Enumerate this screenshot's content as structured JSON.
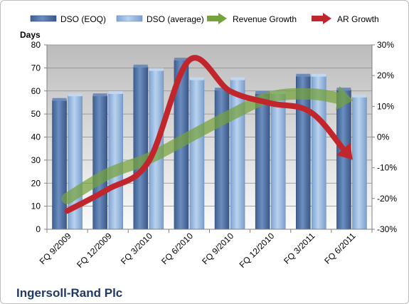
{
  "chart_data": {
    "type": "bar",
    "company": "Ingersoll-Rand Plc",
    "y_left_label": "Days",
    "categories": [
      "FQ 9/2009",
      "FQ 12/2009",
      "FQ 3/2010",
      "FQ 6/2010",
      "FQ 9/2010",
      "FQ 12/2010",
      "FQ 3/2011",
      "FQ 6/2011"
    ],
    "y_left_lim": [
      0,
      80
    ],
    "y_left_ticks": [
      "0",
      "10",
      "20",
      "30",
      "40",
      "50",
      "60",
      "70",
      "80"
    ],
    "y_right_lim": [
      -30,
      30
    ],
    "y_right_ticks": [
      "-30%",
      "-20%",
      "-10%",
      "0%",
      "10%",
      "20%",
      "30%"
    ],
    "grid": true,
    "legend_position": "top",
    "series": [
      {
        "name": "DSO (EOQ)",
        "kind": "bar",
        "axis": "left",
        "color": "#4f6fa0",
        "values": [
          56,
          58,
          70.5,
          73.5,
          60.5,
          59,
          66.5,
          60.5
        ]
      },
      {
        "name": "DSO (average)",
        "kind": "bar",
        "axis": "left",
        "color": "#8fb2dc",
        "values": [
          58,
          59,
          69,
          65,
          65,
          59,
          66.5,
          57.5
        ]
      },
      {
        "name": "Revenue Growth",
        "kind": "arrow-line",
        "axis": "right",
        "color": "#77a33c",
        "values": [
          -20,
          -12,
          -7,
          0,
          7,
          13,
          14,
          12
        ]
      },
      {
        "name": "AR Growth",
        "kind": "arrow-line",
        "axis": "right",
        "color": "#c0262c",
        "values": [
          -24,
          -17,
          -8,
          25,
          15,
          11,
          8,
          -7
        ]
      }
    ]
  }
}
